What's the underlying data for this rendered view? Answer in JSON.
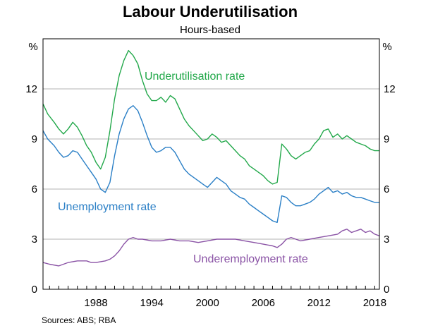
{
  "chart_data": {
    "type": "line",
    "title": "Labour Underutilisation",
    "subtitle": "Hours-based",
    "unit_left": "%",
    "unit_right": "%",
    "source": "Sources:   ABS; RBA",
    "x_ticks": [
      "1988",
      "1994",
      "2000",
      "2006",
      "2012",
      "2018"
    ],
    "xlim": [
      1982.3,
      2018.5
    ],
    "y_ticks": [
      "0",
      "3",
      "6",
      "9",
      "12"
    ],
    "ylim": [
      0,
      15
    ],
    "grid": true,
    "series": [
      {
        "name": "Underutilisation rate",
        "color": "#22a84a",
        "x": [
          1982.3,
          1982.8,
          1983.5,
          1984.0,
          1984.5,
          1985.0,
          1985.5,
          1986.0,
          1986.5,
          1987.0,
          1987.5,
          1988.0,
          1988.5,
          1989.0,
          1989.5,
          1990.0,
          1990.5,
          1991.0,
          1991.5,
          1992.0,
          1992.5,
          1993.0,
          1993.5,
          1994.0,
          1994.5,
          1995.0,
          1995.5,
          1996.0,
          1996.5,
          1997.0,
          1997.5,
          1998.0,
          1998.5,
          1999.0,
          1999.5,
          2000.0,
          2000.5,
          2001.0,
          2001.5,
          2002.0,
          2002.5,
          2003.0,
          2003.5,
          2004.0,
          2004.5,
          2005.0,
          2005.5,
          2006.0,
          2006.5,
          2007.0,
          2007.5,
          2008.0,
          2008.5,
          2009.0,
          2009.5,
          2010.0,
          2010.5,
          2011.0,
          2011.5,
          2012.0,
          2012.5,
          2013.0,
          2013.5,
          2014.0,
          2014.5,
          2015.0,
          2015.5,
          2016.0,
          2016.5,
          2017.0,
          2017.5,
          2018.0,
          2018.5
        ],
        "y": [
          11.1,
          10.5,
          10.0,
          9.6,
          9.3,
          9.6,
          10.0,
          9.7,
          9.2,
          8.6,
          8.2,
          7.6,
          7.2,
          7.9,
          9.5,
          11.4,
          12.8,
          13.7,
          14.3,
          14.0,
          13.5,
          12.5,
          11.7,
          11.3,
          11.3,
          11.5,
          11.2,
          11.6,
          11.4,
          10.8,
          10.2,
          9.8,
          9.5,
          9.2,
          8.9,
          9.0,
          9.3,
          9.1,
          8.8,
          8.9,
          8.6,
          8.3,
          8.0,
          7.8,
          7.4,
          7.2,
          7.0,
          6.8,
          6.5,
          6.3,
          6.4,
          8.7,
          8.4,
          8.0,
          7.8,
          8.0,
          8.2,
          8.3,
          8.7,
          9.0,
          9.5,
          9.6,
          9.1,
          9.3,
          9.0,
          9.2,
          9.0,
          8.8,
          8.7,
          8.6,
          8.4,
          8.3,
          8.3
        ]
      },
      {
        "name": "Unemployment rate",
        "color": "#2a7fc6",
        "x": [
          1982.3,
          1982.8,
          1983.5,
          1984.0,
          1984.5,
          1985.0,
          1985.5,
          1986.0,
          1986.5,
          1987.0,
          1987.5,
          1988.0,
          1988.5,
          1989.0,
          1989.5,
          1990.0,
          1990.5,
          1991.0,
          1991.5,
          1992.0,
          1992.5,
          1993.0,
          1993.5,
          1994.0,
          1994.5,
          1995.0,
          1995.5,
          1996.0,
          1996.5,
          1997.0,
          1997.5,
          1998.0,
          1998.5,
          1999.0,
          1999.5,
          2000.0,
          2000.5,
          2001.0,
          2001.5,
          2002.0,
          2002.5,
          2003.0,
          2003.5,
          2004.0,
          2004.5,
          2005.0,
          2005.5,
          2006.0,
          2006.5,
          2007.0,
          2007.5,
          2008.0,
          2008.5,
          2009.0,
          2009.5,
          2010.0,
          2010.5,
          2011.0,
          2011.5,
          2012.0,
          2012.5,
          2013.0,
          2013.5,
          2014.0,
          2014.5,
          2015.0,
          2015.5,
          2016.0,
          2016.5,
          2017.0,
          2017.5,
          2018.0,
          2018.5
        ],
        "y": [
          9.5,
          9.0,
          8.6,
          8.2,
          7.9,
          8.0,
          8.3,
          8.2,
          7.8,
          7.4,
          7.0,
          6.6,
          6.0,
          5.8,
          6.4,
          8.0,
          9.3,
          10.2,
          10.8,
          11.0,
          10.7,
          10.0,
          9.2,
          8.5,
          8.2,
          8.3,
          8.5,
          8.5,
          8.2,
          7.7,
          7.2,
          6.9,
          6.7,
          6.5,
          6.3,
          6.1,
          6.4,
          6.7,
          6.5,
          6.3,
          5.9,
          5.7,
          5.5,
          5.4,
          5.1,
          4.9,
          4.7,
          4.5,
          4.3,
          4.1,
          4.0,
          5.6,
          5.5,
          5.2,
          5.0,
          5.0,
          5.1,
          5.2,
          5.4,
          5.7,
          5.9,
          6.1,
          5.8,
          5.9,
          5.7,
          5.8,
          5.6,
          5.5,
          5.5,
          5.4,
          5.3,
          5.2,
          5.2
        ]
      },
      {
        "name": "Underemployment rate",
        "color": "#8b54a6",
        "x": [
          1982.3,
          1983.0,
          1984.0,
          1985.0,
          1986.0,
          1987.0,
          1987.5,
          1988.0,
          1989.0,
          1989.5,
          1990.0,
          1990.5,
          1991.0,
          1991.5,
          1992.0,
          1992.5,
          1993.0,
          1994.0,
          1995.0,
          1996.0,
          1997.0,
          1998.0,
          1999.0,
          2000.0,
          2001.0,
          2002.0,
          2003.0,
          2004.0,
          2005.0,
          2006.0,
          2007.0,
          2007.5,
          2008.0,
          2008.5,
          2009.0,
          2009.5,
          2010.0,
          2011.0,
          2012.0,
          2013.0,
          2014.0,
          2014.5,
          2015.0,
          2015.5,
          2016.0,
          2016.5,
          2017.0,
          2017.5,
          2018.0,
          2018.5
        ],
        "y": [
          1.6,
          1.5,
          1.4,
          1.6,
          1.7,
          1.7,
          1.6,
          1.6,
          1.7,
          1.8,
          2.0,
          2.3,
          2.7,
          3.0,
          3.1,
          3.0,
          3.0,
          2.9,
          2.9,
          3.0,
          2.9,
          2.9,
          2.8,
          2.9,
          3.0,
          3.0,
          3.0,
          2.9,
          2.8,
          2.7,
          2.6,
          2.5,
          2.7,
          3.0,
          3.1,
          3.0,
          2.9,
          3.0,
          3.1,
          3.2,
          3.3,
          3.5,
          3.6,
          3.4,
          3.5,
          3.6,
          3.4,
          3.5,
          3.3,
          3.2
        ]
      }
    ]
  }
}
